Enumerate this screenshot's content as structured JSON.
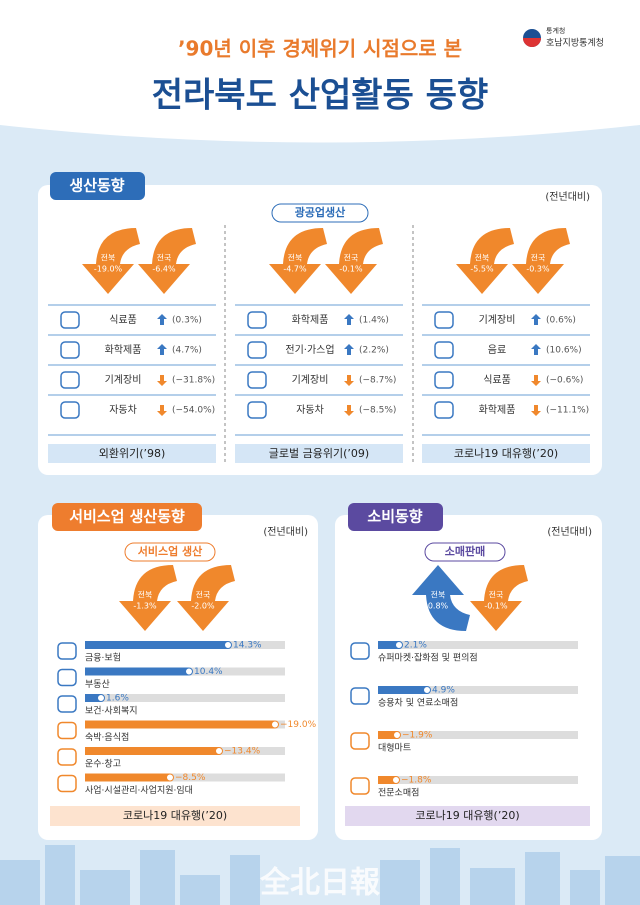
{
  "header": {
    "subtitle": "’90년 이후 경제위기 시점으로 본",
    "title": "전라북도 산업활동 동향",
    "org_small": "통계청",
    "org": "호남지방통계청"
  },
  "production": {
    "tab": "생산동향",
    "note": "(전년대비)",
    "subtitle": "광공업생산",
    "columns": [
      {
        "arrows": [
          {
            "region": "전북",
            "value": -19.0,
            "label": "-19.0%"
          },
          {
            "region": "전국",
            "value": -6.4,
            "label": "-6.4%"
          }
        ],
        "items": [
          {
            "name": "식료품",
            "value": 0.3,
            "label": "(0.3%)"
          },
          {
            "name": "화학제품",
            "value": 4.7,
            "label": "(4.7%)"
          },
          {
            "name": "기계장비",
            "value": -31.8,
            "label": "(−31.8%)"
          },
          {
            "name": "자동차",
            "value": -54.0,
            "label": "(−54.0%)"
          }
        ],
        "period": "외환위기(’98)"
      },
      {
        "arrows": [
          {
            "region": "전북",
            "value": -4.7,
            "label": "-4.7%"
          },
          {
            "region": "전국",
            "value": -0.1,
            "label": "-0.1%"
          }
        ],
        "items": [
          {
            "name": "화학제품",
            "value": 1.4,
            "label": "(1.4%)"
          },
          {
            "name": "전기·가스업",
            "value": 2.2,
            "label": "(2.2%)"
          },
          {
            "name": "기계장비",
            "value": -8.7,
            "label": "(−8.7%)"
          },
          {
            "name": "자동차",
            "value": -8.5,
            "label": "(−8.5%)"
          }
        ],
        "period": "글로벌 금융위기(’09)"
      },
      {
        "arrows": [
          {
            "region": "전북",
            "value": -5.5,
            "label": "-5.5%"
          },
          {
            "region": "전국",
            "value": -0.3,
            "label": "-0.3%"
          }
        ],
        "items": [
          {
            "name": "기계장비",
            "value": 0.6,
            "label": "(0.6%)"
          },
          {
            "name": "음료",
            "value": 10.6,
            "label": "(10.6%)"
          },
          {
            "name": "식료품",
            "value": -0.6,
            "label": "(−0.6%)"
          },
          {
            "name": "화학제품",
            "value": -11.1,
            "label": "(−11.1%)"
          }
        ],
        "period": "코로나19 대유행(’20)"
      }
    ]
  },
  "service": {
    "tab": "서비스업 생산동향",
    "note": "(전년대비)",
    "subtitle": "서비스업 생산",
    "arrows": [
      {
        "region": "전북",
        "value": -1.3,
        "label": "-1.3%"
      },
      {
        "region": "전국",
        "value": -2.0,
        "label": "-2.0%"
      }
    ],
    "items": [
      {
        "name": "금융·보험",
        "value": 14.3,
        "label": "14.3%"
      },
      {
        "name": "부동산",
        "value": 10.4,
        "label": "10.4%"
      },
      {
        "name": "보건·사회복지",
        "value": 1.6,
        "label": "1.6%"
      },
      {
        "name": "숙박·음식점",
        "value": -19.0,
        "label": "−19.0%"
      },
      {
        "name": "운수·창고",
        "value": -13.4,
        "label": "−13.4%"
      },
      {
        "name": "사업·시설관리·사업지원·임대",
        "value": -8.5,
        "label": "−8.5%"
      }
    ],
    "period": "코로나19 대유행(’20)"
  },
  "consumption": {
    "tab": "소비동향",
    "note": "(전년대비)",
    "subtitle": "소매판매",
    "arrows": [
      {
        "region": "전북",
        "value": 0.8,
        "label": "0.8%"
      },
      {
        "region": "전국",
        "value": -0.1,
        "label": "-0.1%"
      }
    ],
    "items": [
      {
        "name": "슈퍼마켓·잡화점 및 편의점",
        "value": 2.1,
        "label": "2.1%"
      },
      {
        "name": "승용차 및 연료소매점",
        "value": 4.9,
        "label": "4.9%"
      },
      {
        "name": "대형마트",
        "value": -1.9,
        "label": "−1.9%"
      },
      {
        "name": "전문소매점",
        "value": -1.8,
        "label": "−1.8%"
      }
    ],
    "period": "코로나19 대유행(’20)"
  },
  "watermark": "全北日報"
}
